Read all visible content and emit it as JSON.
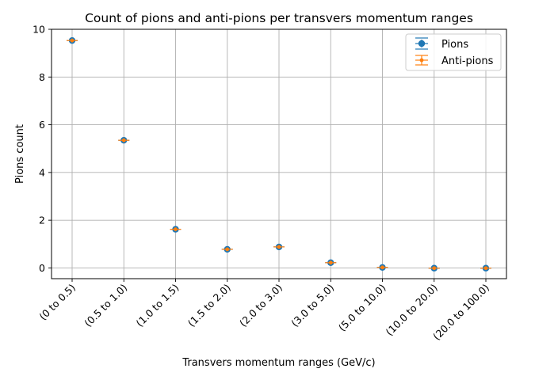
{
  "chart_data": {
    "type": "scatter",
    "title": "Count of pions and anti-pions per transvers momentum ranges",
    "xlabel": "Transvers momentum ranges (GeV/c)",
    "ylabel": "Pions count",
    "categories": [
      "(0 to 0.5)",
      "(0.5 to 1.0)",
      "(1.0 to 1.5)",
      "(1.5 to 2.0)",
      "(2.0 to 3.0)",
      "(3.0 to 5.0)",
      "(5.0 to 10.0)",
      "(10.0 to 20.0)",
      "(20.0 to 100.0)"
    ],
    "ylim": [
      -0.45,
      10.0
    ],
    "yticks": [
      0,
      2,
      4,
      6,
      8,
      10
    ],
    "grid": true,
    "legend_position": "top-right",
    "series": [
      {
        "name": "Pions",
        "values": [
          9.53,
          5.35,
          1.62,
          0.78,
          0.88,
          0.22,
          0.02,
          -0.01,
          -0.01
        ],
        "color": "#1f77b4",
        "marker": "circle-large"
      },
      {
        "name": "Anti-pions",
        "values": [
          9.53,
          5.35,
          1.62,
          0.78,
          0.88,
          0.22,
          0.02,
          -0.01,
          -0.01
        ],
        "color": "#ff7f0e",
        "marker": "circle-small"
      }
    ]
  }
}
